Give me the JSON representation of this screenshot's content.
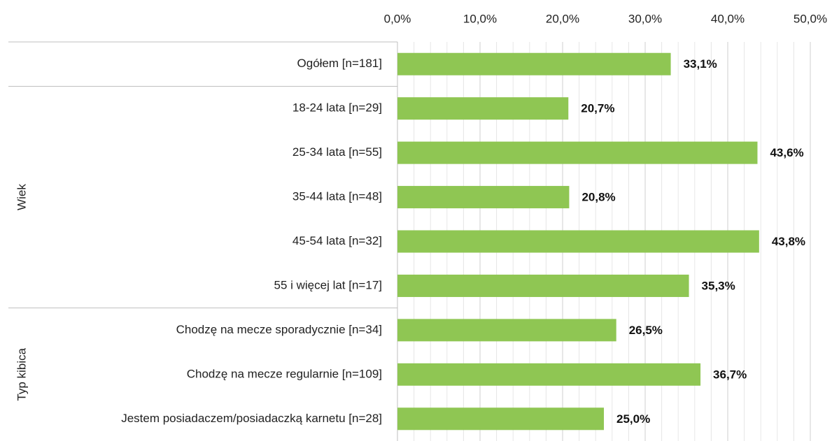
{
  "chart_data": {
    "type": "bar",
    "orientation": "horizontal",
    "categories": [
      "Ogółem [n=181]",
      "18-24 lata [n=29]",
      "25-34 lata [n=55]",
      "35-44 lata [n=48]",
      "45-54 lata [n=32]",
      "55 i więcej lat [n=17]",
      "Chodzę na mecze sporadycznie [n=34]",
      "Chodzę na mecze regularnie [n=109]",
      "Jestem posiadaczem/posiadaczką karnetu [n=28]"
    ],
    "category_groups": [
      null,
      "Wiek",
      "Wiek",
      "Wiek",
      "Wiek",
      "Wiek",
      "Typ kibica",
      "Typ kibica",
      "Typ kibica"
    ],
    "values": [
      33.1,
      20.7,
      43.6,
      20.8,
      43.8,
      35.3,
      26.5,
      36.7,
      25.0
    ],
    "value_labels": [
      "33,1%",
      "20,7%",
      "43,6%",
      "20,8%",
      "43,8%",
      "35,3%",
      "26,5%",
      "36,7%",
      "25,0%"
    ],
    "color": "#8fc653",
    "xlim": [
      0,
      50
    ],
    "xticks": [
      {
        "value": 0,
        "label": "0,0%"
      },
      {
        "value": 10,
        "label": "10,0%"
      },
      {
        "value": 20,
        "label": "20,0%"
      },
      {
        "value": 30,
        "label": "30,0%"
      },
      {
        "value": 40,
        "label": "40,0%"
      },
      {
        "value": 50,
        "label": "50,0%"
      }
    ],
    "minor_xticks": [
      2,
      4,
      6,
      8,
      12,
      14,
      16,
      18,
      22,
      24,
      26,
      28,
      32,
      34,
      36,
      38,
      42,
      44,
      46,
      48
    ],
    "grid": true
  }
}
